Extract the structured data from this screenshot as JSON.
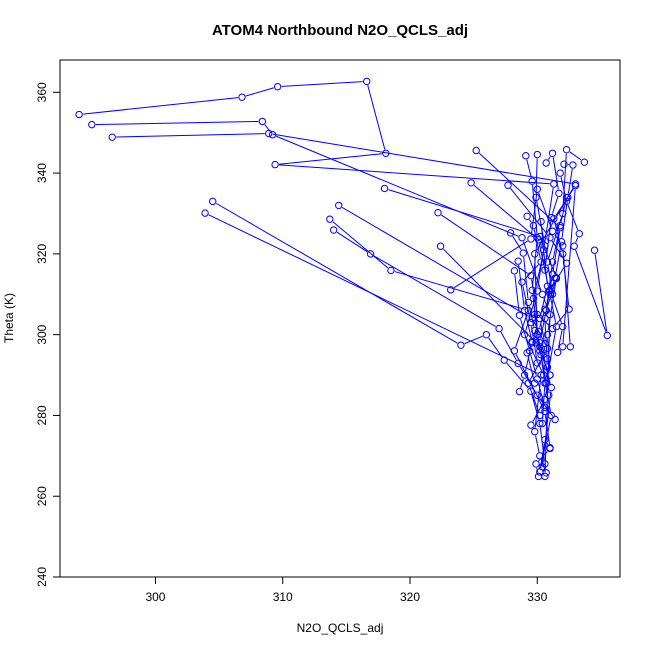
{
  "chart_data": {
    "type": "line",
    "title": "ATOM4 Northbound N2O_QCLS_adj",
    "xlabel": "N2O_QCLS_adj",
    "ylabel": "Theta (K)",
    "xlim": [
      292.5,
      336.5
    ],
    "ylim": [
      240,
      368
    ],
    "xticks": [
      300,
      310,
      320,
      330
    ],
    "yticks": [
      240,
      260,
      280,
      300,
      320,
      340,
      360
    ],
    "grid": false,
    "legend": "none",
    "marker": "open-circle",
    "color": "#0000ff",
    "series": [
      {
        "x": [
          294.0,
          306.8,
          309.6,
          316.6,
          318.1,
          309.4,
          331.3,
          330.0,
          329.0,
          330.5,
          331.1,
          330.2,
          330.6,
          331.0,
          329.9,
          330.1
        ],
        "y": [
          354.5,
          358.8,
          361.4,
          362.7,
          344.9,
          342.1,
          337.3,
          310.8,
          300.0,
          290.0,
          280.0,
          266.0,
          274.0,
          271.8,
          268.0,
          264.9
        ]
      },
      {
        "x": [
          295.0,
          308.4,
          309.2,
          328.8,
          330.4,
          331.0,
          330.6
        ],
        "y": [
          352.0,
          352.8,
          349.5,
          324.0,
          310.0,
          305.0,
          264.9
        ]
      },
      {
        "x": [
          296.6,
          308.9,
          333.0,
          329.8,
          330.0,
          331.1,
          330.4
        ],
        "y": [
          348.9,
          349.8,
          337.3,
          320.0,
          300.0,
          286.9,
          267.3
        ]
      },
      {
        "x": [
          303.9,
          330.3,
          329.8,
          330.2,
          330.7
        ],
        "y": [
          330.1,
          290.0,
          276.0,
          270.0,
          265.8
        ]
      },
      {
        "x": [
          304.5,
          324.0,
          326.0,
          327.4,
          329.5,
          330.2,
          330.6
        ],
        "y": [
          333.0,
          297.4,
          300.0,
          293.7,
          286.0,
          278.0,
          268.0
        ]
      },
      {
        "x": [
          313.7,
          318.5,
          329.3,
          328.2,
          330.6,
          331.0
        ],
        "y": [
          328.6,
          315.9,
          306.0,
          296.0,
          281.0,
          272.0
        ]
      },
      {
        "x": [
          314.0,
          316.9,
          327.0,
          328.5,
          330.0,
          331.4
        ],
        "y": [
          325.9,
          320.0,
          301.5,
          292.9,
          285.0,
          279.0
        ]
      },
      {
        "x": [
          314.4,
          329.6,
          330.8,
          329.3,
          330.2
        ],
        "y": [
          332.0,
          304.0,
          296.6,
          288.0,
          280.0
        ]
      },
      {
        "x": [
          318.0,
          330.2,
          331.5,
          330.8,
          331.0
        ],
        "y": [
          336.2,
          324.3,
          314.1,
          300.0,
          290.0
        ]
      },
      {
        "x": [
          322.2,
          329.5,
          330.0,
          331.2,
          332.5,
          332.0,
          331.3,
          333.0,
          332.0
        ],
        "y": [
          330.2,
          314.6,
          305.0,
          301.5,
          306.3,
          320.0,
          328.7,
          336.9,
          297.0
        ]
      },
      {
        "x": [
          322.4,
          329.9,
          331.0,
          330.6,
          329.5
        ],
        "y": [
          321.9,
          298.0,
          290.0,
          284.0,
          277.6
        ]
      },
      {
        "x": [
          323.2,
          329.5,
          330.0,
          331.2,
          332.0,
          332.6
        ],
        "y": [
          311.1,
          323.7,
          336.0,
          325.6,
          322.0,
          297.0
        ]
      },
      {
        "x": [
          324.8,
          330.1,
          331.0,
          331.5,
          330.7
        ],
        "y": [
          337.6,
          323.5,
          310.0,
          302.0,
          288.0
        ]
      },
      {
        "x": [
          325.2,
          331.8,
          331.2,
          330.6,
          330.8
        ],
        "y": [
          345.6,
          326.5,
          315.0,
          304.0,
          292.0
        ]
      },
      {
        "x": [
          327.7,
          331.0,
          332.3,
          331.0,
          332.0,
          331.6
        ],
        "y": [
          337.0,
          324.0,
          317.7,
          311.0,
          302.0,
          295.6
        ]
      },
      {
        "x": [
          334.5,
          335.5,
          332.9,
          333.3,
          332.3,
          331.8
        ],
        "y": [
          320.9,
          299.8,
          321.9,
          325.0,
          333.0,
          340.0
        ]
      },
      {
        "x": [
          333.7,
          332.3,
          332.0,
          330.8,
          331.2
        ],
        "y": [
          342.7,
          345.8,
          330.0,
          318.0,
          310.0
        ]
      },
      {
        "x": [
          329.1,
          329.6,
          330.0,
          329.6,
          330.2
        ],
        "y": [
          344.3,
          338.0,
          324.0,
          311.0,
          296.0
        ]
      },
      {
        "x": [
          330.0,
          329.9,
          330.6,
          329.7,
          330.0
        ],
        "y": [
          344.6,
          334.0,
          322.0,
          309.0,
          300.0
        ]
      },
      {
        "x": [
          330.7,
          331.2,
          331.7,
          331.1,
          330.6
        ],
        "y": [
          342.5,
          344.9,
          335.0,
          329.0,
          316.0
        ]
      },
      {
        "x": [
          332.1,
          332.8,
          332.4,
          331.9,
          331.4
        ],
        "y": [
          342.2,
          342.0,
          334.0,
          323.0,
          314.0
        ]
      },
      {
        "x": [
          329.2,
          329.7,
          330.3,
          328.8,
          329.5,
          330.0
        ],
        "y": [
          329.3,
          327.0,
          318.0,
          313.0,
          303.0,
          293.0
        ]
      },
      {
        "x": [
          328.5,
          329.0,
          329.6,
          329.0,
          328.6
        ],
        "y": [
          318.2,
          306.0,
          298.3,
          290.0,
          285.9
        ]
      },
      {
        "x": [
          327.9,
          328.9,
          329.3,
          329.8,
          330.3,
          330.9
        ],
        "y": [
          325.2,
          320.2,
          308.0,
          301.0,
          295.0,
          285.0
        ]
      },
      {
        "x": [
          328.2,
          328.6,
          329.4,
          330.0,
          330.6
        ],
        "y": [
          315.8,
          304.8,
          296.0,
          289.0,
          282.0
        ]
      },
      {
        "x": [
          330.9,
          331.5,
          330.7,
          330.2,
          330.8
        ],
        "y": [
          310.8,
          313.9,
          306.0,
          298.0,
          294.0
        ]
      },
      {
        "x": [
          330.6,
          330.1,
          329.6,
          329.2,
          329.8
        ],
        "y": [
          306.3,
          300.8,
          298.0,
          295.5,
          288.0
        ]
      },
      {
        "x": [
          329.8,
          330.2,
          330.6,
          330.4
        ],
        "y": [
          305.0,
          297.0,
          288.0,
          278.0
        ]
      },
      {
        "x": [
          332.3,
          331.8,
          331.2,
          330.7
        ],
        "y": [
          333.9,
          327.0,
          318.0,
          306.0
        ]
      },
      {
        "x": [
          330.3,
          330.5,
          330.8,
          330.2,
          330.6
        ],
        "y": [
          328.0,
          321.0,
          312.0,
          304.0,
          297.8
        ]
      }
    ]
  }
}
